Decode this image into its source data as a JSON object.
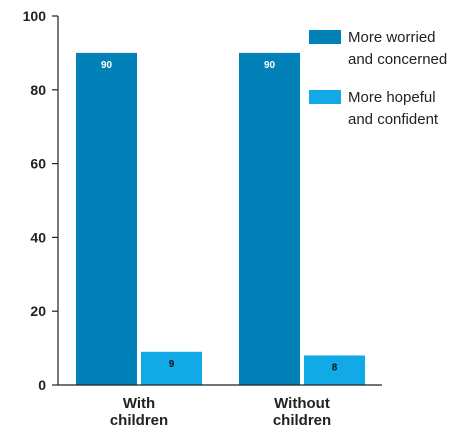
{
  "chart_data": {
    "type": "bar",
    "categories": [
      "With children",
      "Without children"
    ],
    "category_lines": [
      [
        "With",
        "children"
      ],
      [
        "Without",
        "children"
      ]
    ],
    "series": [
      {
        "name": "More worried and concerned",
        "name_lines": [
          "More worried",
          "and concerned"
        ],
        "color": "#0280b8",
        "label_color": "#ffffff",
        "values": [
          90,
          90
        ]
      },
      {
        "name": "More hopeful and confident",
        "name_lines": [
          "More hopeful",
          "and confident"
        ],
        "color": "#11a9e6",
        "label_color": "#111111",
        "values": [
          9,
          8
        ]
      }
    ],
    "ylim": [
      0,
      100
    ],
    "yticks": [
      0,
      20,
      40,
      60,
      80,
      100
    ],
    "grid": false,
    "legend_position": "top-right",
    "data_labels": true
  }
}
